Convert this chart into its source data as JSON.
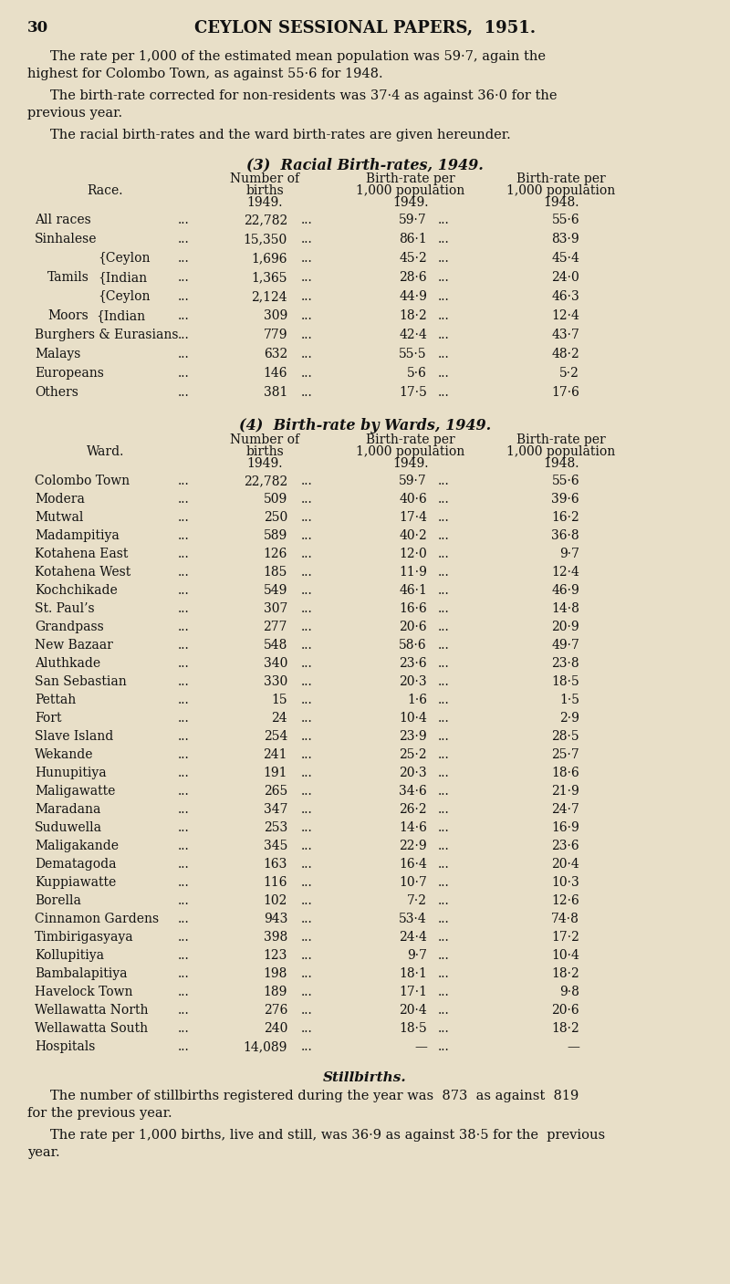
{
  "page_number": "30",
  "header": "CEYLON SESSIONAL PAPERS,  1951.",
  "bg_color": "#e8dfc8",
  "text_color": "#111111",
  "para1_line1": "The rate per 1,000 of the estimated mean population was 59·7, again the",
  "para1_line2": "highest for Colombo Town, as against 55·6 for 1948.",
  "para2_line1": "The birth-rate corrected for non-residents was 37·4 as against 36·0 for the",
  "para2_line2": "previous year.",
  "para3": "The racial birth-rates and the ward birth-rates are given hereunder.",
  "section3_title": "(3)  Racial Birth-rates, 1949.",
  "section4_title": "(4)  Birth-rate by Wards, 1949.",
  "race_label": "Race.",
  "ward_label": "Ward.",
  "section3_rows": [
    [
      "All races",
      "22,782",
      "59·7",
      "55·6"
    ],
    [
      "Sinhalese",
      "15,350",
      "86·1",
      "83·9"
    ],
    [
      "{Ceylon",
      "1,696",
      "45·2",
      "45·4"
    ],
    [
      "Tamils{Indian",
      "1,365",
      "28·6",
      "24·0"
    ],
    [
      "{Ceylon",
      "2,124",
      "44·9",
      "46·3"
    ],
    [
      "Moors{Indian",
      "309",
      "18·2",
      "12·4"
    ],
    [
      "Burghers & Eurasians",
      "779",
      "42·4",
      "43·7"
    ],
    [
      "Malays",
      "632",
      "55·5",
      "48·2"
    ],
    [
      "Europeans",
      "146",
      "5·6",
      "5·2"
    ],
    [
      "Others",
      "381",
      "17·5",
      "17·6"
    ]
  ],
  "section4_rows": [
    [
      "Colombo Town",
      "22,782",
      "59·7",
      "55·6"
    ],
    [
      "Modera",
      "509",
      "40·6",
      "39·6"
    ],
    [
      "Mutwal",
      "250",
      "17·4",
      "16·2"
    ],
    [
      "Madampitiya",
      "589",
      "40·2",
      "36·8"
    ],
    [
      "Kotahena East",
      "126",
      "12·0",
      "9·7"
    ],
    [
      "Kotahena West",
      "185",
      "11·9",
      "12·4"
    ],
    [
      "Kochchikade",
      "549",
      "46·1",
      "46·9"
    ],
    [
      "St. Paul’s",
      "307",
      "16·6",
      "14·8"
    ],
    [
      "Grandpass",
      "277",
      "20·6",
      "20·9"
    ],
    [
      "New Bazaar",
      "548",
      "58·6",
      "49·7"
    ],
    [
      "Aluthkade",
      "340",
      "23·6",
      "23·8"
    ],
    [
      "San Sebastian",
      "330",
      "20·3",
      "18·5"
    ],
    [
      "Pettah",
      "15",
      "1·6",
      "1·5"
    ],
    [
      "Fort",
      "24",
      "10·4",
      "2·9"
    ],
    [
      "Slave Island",
      "254",
      "23·9",
      "28·5"
    ],
    [
      "Wekande",
      "241",
      "25·2",
      "25·7"
    ],
    [
      "Hunupitiya",
      "191",
      "20·3",
      "18·6"
    ],
    [
      "Maligawatte",
      "265",
      "34·6",
      "21·9"
    ],
    [
      "Maradana",
      "347",
      "26·2",
      "24·7"
    ],
    [
      "Suduwella",
      "253",
      "14·6",
      "16·9"
    ],
    [
      "Maligakande",
      "345",
      "22·9",
      "23·6"
    ],
    [
      "Dematagoda",
      "163",
      "16·4",
      "20·4"
    ],
    [
      "Kuppiawatte",
      "116",
      "10·7",
      "10·3"
    ],
    [
      "Borella",
      "102",
      "7·2",
      "12·6"
    ],
    [
      "Cinnamon Gardens",
      "943",
      "53·4",
      "74·8"
    ],
    [
      "Timbirigasyaya",
      "398",
      "24·4",
      "17·2"
    ],
    [
      "Kollupitiya",
      "123",
      "9·7",
      "10·4"
    ],
    [
      "Bambalapitiya",
      "198",
      "18·1",
      "18·2"
    ],
    [
      "Havelock Town",
      "189",
      "17·1",
      "9·8"
    ],
    [
      "Wellawatta North",
      "276",
      "20·4",
      "20·6"
    ],
    [
      "Wellawatta South",
      "240",
      "18·5",
      "18·2"
    ],
    [
      "Hospitals",
      "14,089",
      "—",
      "—"
    ]
  ],
  "stillbirths_title": "Stillbirths.",
  "still_para1_line1": "The number of stillbirths registered during the year was  873  as against  819",
  "still_para1_line2": "for the previous year.",
  "still_para2_line1": "The rate per 1,000 births, live and still, was 36·9 as against 38·5 for the  previous",
  "still_para2_line2": "year."
}
